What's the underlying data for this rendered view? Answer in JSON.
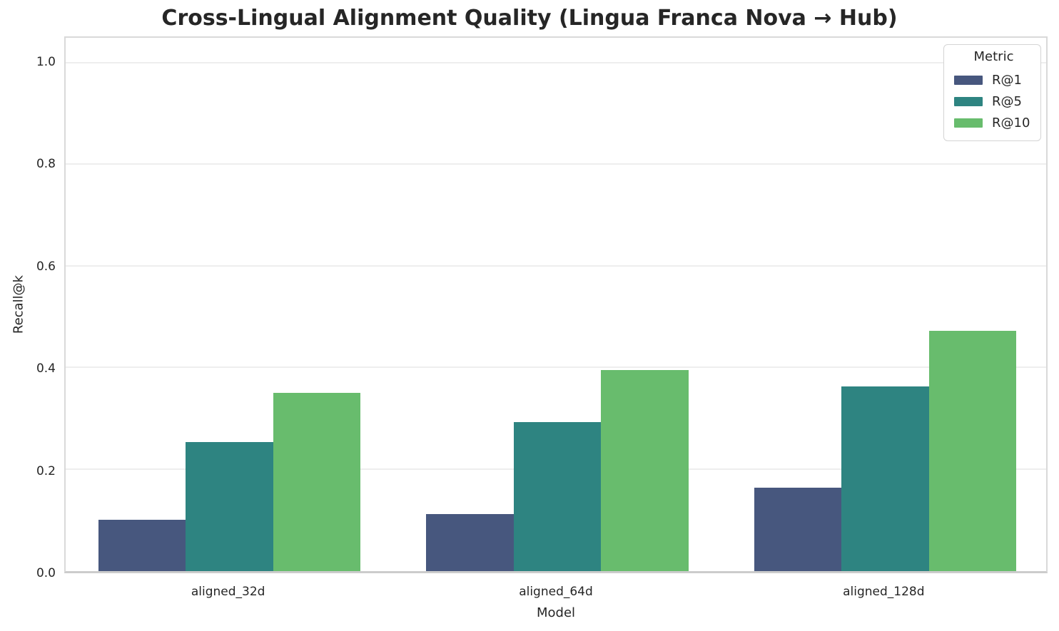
{
  "chart_data": {
    "type": "bar",
    "title": "Cross-Lingual Alignment Quality (Lingua Franca Nova → Hub)",
    "xlabel": "Model",
    "ylabel": "Recall@k",
    "categories": [
      "aligned_32d",
      "aligned_64d",
      "aligned_128d"
    ],
    "series": [
      {
        "name": "R@1",
        "color": "#47577E",
        "values": [
          0.1,
          0.112,
          0.163
        ]
      },
      {
        "name": "R@5",
        "color": "#2E8481",
        "values": [
          0.253,
          0.291,
          0.361
        ]
      },
      {
        "name": "R@10",
        "color": "#68BC6D",
        "values": [
          0.349,
          0.393,
          0.47
        ]
      }
    ],
    "ylim": [
      0,
      1.05
    ],
    "yticks": [
      0.0,
      0.2,
      0.4,
      0.6,
      0.8,
      1.0
    ],
    "grid": true,
    "bar_group_width_fraction": 0.8,
    "legend": {
      "title": "Metric",
      "entries": [
        "R@1",
        "R@5",
        "R@10"
      ],
      "position": "upper right"
    }
  },
  "colors": {
    "background": "#ffffff",
    "text": "#262626",
    "gridline": "#eeeeee",
    "spine": "#d9d9d9",
    "bottom_spine": "#cccccc",
    "legend_border": "#d4d4d4"
  }
}
